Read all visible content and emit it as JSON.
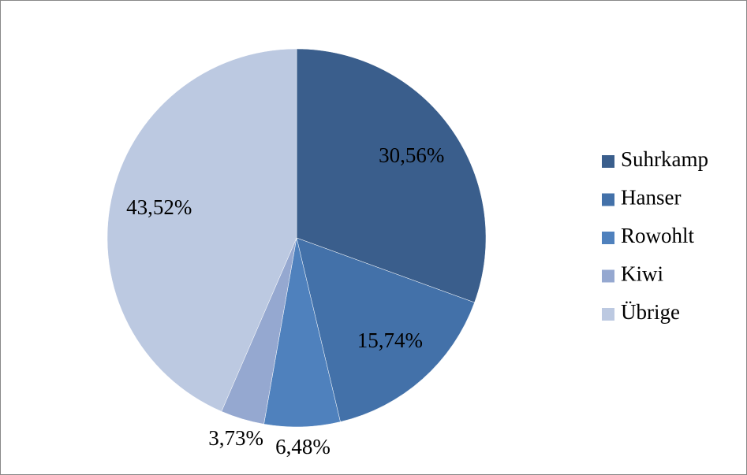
{
  "chart_data": {
    "type": "pie",
    "categories": [
      "Suhrkamp",
      "Hanser",
      "Rowohlt",
      "Kiwi",
      "Übrige"
    ],
    "values": [
      30.56,
      15.74,
      6.48,
      3.73,
      43.52
    ],
    "value_labels": [
      "30,56%",
      "15,74%",
      "6,48%",
      "3,73%",
      "43,52%"
    ],
    "colors": [
      "#3a5e8c",
      "#4371a9",
      "#4f81bd",
      "#95a8d0",
      "#bcc9e1"
    ],
    "legend": "right"
  }
}
